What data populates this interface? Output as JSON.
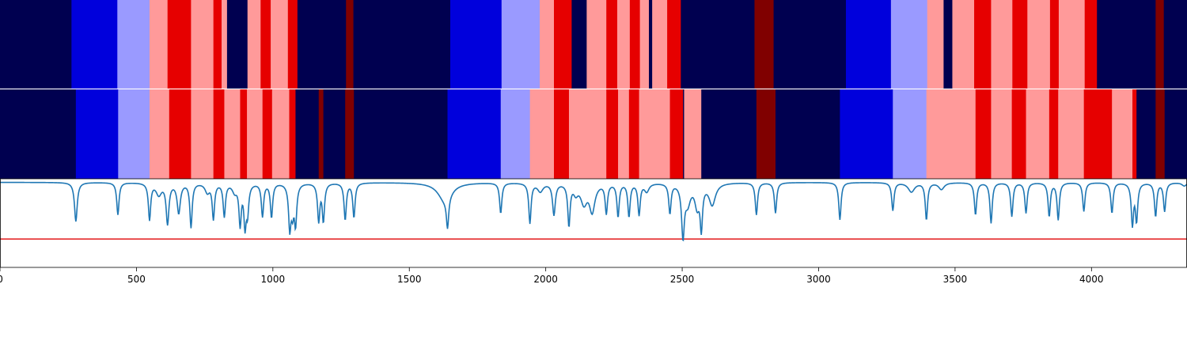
{
  "chart_data": [
    {
      "type": "heatmap",
      "panel": "top-strip",
      "x_range": [
        0,
        4350
      ],
      "segments": [
        {
          "start": 0,
          "end": 262,
          "class": "navy"
        },
        {
          "start": 262,
          "end": 430,
          "class": "blue"
        },
        {
          "start": 430,
          "end": 548,
          "class": "lightblue"
        },
        {
          "start": 548,
          "end": 614,
          "class": "pink"
        },
        {
          "start": 614,
          "end": 700,
          "class": "red"
        },
        {
          "start": 700,
          "end": 782,
          "class": "pink"
        },
        {
          "start": 782,
          "end": 812,
          "class": "red"
        },
        {
          "start": 812,
          "end": 832,
          "class": "pink"
        },
        {
          "start": 832,
          "end": 907,
          "class": "navy"
        },
        {
          "start": 907,
          "end": 955,
          "class": "pink"
        },
        {
          "start": 955,
          "end": 992,
          "class": "red"
        },
        {
          "start": 992,
          "end": 1055,
          "class": "pink"
        },
        {
          "start": 1055,
          "end": 1090,
          "class": "red"
        },
        {
          "start": 1090,
          "end": 1268,
          "class": "navy"
        },
        {
          "start": 1268,
          "end": 1295,
          "class": "darkred"
        },
        {
          "start": 1295,
          "end": 1650,
          "class": "navy"
        },
        {
          "start": 1650,
          "end": 1838,
          "class": "blue"
        },
        {
          "start": 1838,
          "end": 1978,
          "class": "lightblue"
        },
        {
          "start": 1978,
          "end": 2030,
          "class": "pink"
        },
        {
          "start": 2030,
          "end": 2095,
          "class": "red"
        },
        {
          "start": 2095,
          "end": 2150,
          "class": "navy"
        },
        {
          "start": 2150,
          "end": 2222,
          "class": "pink"
        },
        {
          "start": 2222,
          "end": 2262,
          "class": "red"
        },
        {
          "start": 2262,
          "end": 2308,
          "class": "pink"
        },
        {
          "start": 2308,
          "end": 2345,
          "class": "red"
        },
        {
          "start": 2345,
          "end": 2378,
          "class": "pink"
        },
        {
          "start": 2378,
          "end": 2390,
          "class": "navy"
        },
        {
          "start": 2390,
          "end": 2445,
          "class": "pink"
        },
        {
          "start": 2445,
          "end": 2495,
          "class": "red"
        },
        {
          "start": 2495,
          "end": 2765,
          "class": "navy"
        },
        {
          "start": 2765,
          "end": 2835,
          "class": "darkred"
        },
        {
          "start": 2835,
          "end": 3100,
          "class": "navy"
        },
        {
          "start": 3100,
          "end": 3265,
          "class": "blue"
        },
        {
          "start": 3265,
          "end": 3398,
          "class": "lightblue"
        },
        {
          "start": 3398,
          "end": 3458,
          "class": "pink"
        },
        {
          "start": 3458,
          "end": 3490,
          "class": "navy"
        },
        {
          "start": 3490,
          "end": 3570,
          "class": "pink"
        },
        {
          "start": 3570,
          "end": 3632,
          "class": "red"
        },
        {
          "start": 3632,
          "end": 3710,
          "class": "pink"
        },
        {
          "start": 3710,
          "end": 3765,
          "class": "red"
        },
        {
          "start": 3765,
          "end": 3848,
          "class": "pink"
        },
        {
          "start": 3848,
          "end": 3880,
          "class": "red"
        },
        {
          "start": 3880,
          "end": 3975,
          "class": "pink"
        },
        {
          "start": 3975,
          "end": 4020,
          "class": "red"
        },
        {
          "start": 4020,
          "end": 4235,
          "class": "navy"
        },
        {
          "start": 4235,
          "end": 4265,
          "class": "darkred"
        },
        {
          "start": 4265,
          "end": 4350,
          "class": "navy"
        }
      ]
    },
    {
      "type": "heatmap",
      "panel": "middle-strip",
      "x_range": [
        0,
        4350
      ],
      "segments": [
        {
          "start": 0,
          "end": 278,
          "class": "navy"
        },
        {
          "start": 278,
          "end": 433,
          "class": "blue"
        },
        {
          "start": 433,
          "end": 548,
          "class": "lightblue"
        },
        {
          "start": 548,
          "end": 620,
          "class": "pink"
        },
        {
          "start": 620,
          "end": 700,
          "class": "red"
        },
        {
          "start": 700,
          "end": 782,
          "class": "pink"
        },
        {
          "start": 782,
          "end": 822,
          "class": "red"
        },
        {
          "start": 822,
          "end": 880,
          "class": "pink"
        },
        {
          "start": 880,
          "end": 905,
          "class": "red"
        },
        {
          "start": 905,
          "end": 962,
          "class": "pink"
        },
        {
          "start": 962,
          "end": 997,
          "class": "red"
        },
        {
          "start": 997,
          "end": 1060,
          "class": "pink"
        },
        {
          "start": 1060,
          "end": 1083,
          "class": "red"
        },
        {
          "start": 1083,
          "end": 1168,
          "class": "navy"
        },
        {
          "start": 1168,
          "end": 1185,
          "class": "darkred"
        },
        {
          "start": 1185,
          "end": 1265,
          "class": "navy"
        },
        {
          "start": 1265,
          "end": 1297,
          "class": "darkred"
        },
        {
          "start": 1297,
          "end": 1640,
          "class": "navy"
        },
        {
          "start": 1640,
          "end": 1835,
          "class": "blue"
        },
        {
          "start": 1835,
          "end": 1942,
          "class": "lightblue"
        },
        {
          "start": 1942,
          "end": 2030,
          "class": "pink"
        },
        {
          "start": 2030,
          "end": 2085,
          "class": "red"
        },
        {
          "start": 2085,
          "end": 2222,
          "class": "pink"
        },
        {
          "start": 2222,
          "end": 2265,
          "class": "red"
        },
        {
          "start": 2265,
          "end": 2305,
          "class": "pink"
        },
        {
          "start": 2305,
          "end": 2342,
          "class": "red"
        },
        {
          "start": 2342,
          "end": 2455,
          "class": "pink"
        },
        {
          "start": 2455,
          "end": 2503,
          "class": "red"
        },
        {
          "start": 2503,
          "end": 2507,
          "class": "navy"
        },
        {
          "start": 2507,
          "end": 2570,
          "class": "pink"
        },
        {
          "start": 2570,
          "end": 2772,
          "class": "navy"
        },
        {
          "start": 2772,
          "end": 2842,
          "class": "darkred"
        },
        {
          "start": 2842,
          "end": 3078,
          "class": "navy"
        },
        {
          "start": 3078,
          "end": 3272,
          "class": "blue"
        },
        {
          "start": 3272,
          "end": 3395,
          "class": "lightblue"
        },
        {
          "start": 3395,
          "end": 3575,
          "class": "pink"
        },
        {
          "start": 3575,
          "end": 3632,
          "class": "red"
        },
        {
          "start": 3632,
          "end": 3708,
          "class": "pink"
        },
        {
          "start": 3708,
          "end": 3760,
          "class": "red"
        },
        {
          "start": 3760,
          "end": 3845,
          "class": "pink"
        },
        {
          "start": 3845,
          "end": 3878,
          "class": "red"
        },
        {
          "start": 3878,
          "end": 3972,
          "class": "pink"
        },
        {
          "start": 3972,
          "end": 4075,
          "class": "red"
        },
        {
          "start": 4075,
          "end": 4150,
          "class": "pink"
        },
        {
          "start": 4150,
          "end": 4165,
          "class": "red"
        },
        {
          "start": 4165,
          "end": 4235,
          "class": "navy"
        },
        {
          "start": 4235,
          "end": 4268,
          "class": "darkred"
        },
        {
          "start": 4268,
          "end": 4350,
          "class": "navy"
        }
      ]
    },
    {
      "type": "line",
      "panel": "bottom-line",
      "x_range": [
        0,
        4350
      ],
      "y_range": [
        0,
        1
      ],
      "xticks": [
        "0",
        "500",
        "1000",
        "1500",
        "2000",
        "2500",
        "3000",
        "3500",
        "4000"
      ],
      "xtick_values": [
        0,
        500,
        1000,
        1500,
        2000,
        2500,
        3000,
        3500,
        4000
      ],
      "threshold": 0.32,
      "series": [
        {
          "color": "#1f77b4",
          "baseline": 0.96,
          "dips": [
            [
              25,
              0.98,
              40
            ],
            [
              80,
              0.97,
              60
            ],
            [
              150,
              0.975,
              50
            ],
            [
              230,
              0.96,
              40
            ],
            [
              278,
              0.5,
              6
            ],
            [
              432,
              0.58,
              5
            ],
            [
              548,
              0.52,
              5
            ],
            [
              582,
              0.82,
              12
            ],
            [
              614,
              0.47,
              6
            ],
            [
              655,
              0.6,
              7
            ],
            [
              700,
              0.43,
              5
            ],
            [
              760,
              0.85,
              10
            ],
            [
              782,
              0.53,
              5
            ],
            [
              822,
              0.56,
              5
            ],
            [
              860,
              0.86,
              10
            ],
            [
              880,
              0.45,
              5
            ],
            [
              898,
              0.42,
              5
            ],
            [
              907,
              0.6,
              5
            ],
            [
              962,
              0.56,
              5
            ],
            [
              995,
              0.55,
              5
            ],
            [
              1062,
              0.4,
              5
            ],
            [
              1072,
              0.6,
              6
            ],
            [
              1083,
              0.46,
              5
            ],
            [
              1168,
              0.5,
              5
            ],
            [
              1185,
              0.5,
              5
            ],
            [
              1265,
              0.52,
              5
            ],
            [
              1297,
              0.55,
              5
            ],
            [
              1630,
              0.75,
              30
            ],
            [
              1640,
              0.52,
              5
            ],
            [
              1835,
              0.6,
              5
            ],
            [
              1942,
              0.48,
              5
            ],
            [
              1980,
              0.86,
              12
            ],
            [
              2030,
              0.58,
              6
            ],
            [
              2085,
              0.45,
              5
            ],
            [
              2110,
              0.85,
              10
            ],
            [
              2140,
              0.72,
              14
            ],
            [
              2170,
              0.62,
              12
            ],
            [
              2222,
              0.6,
              5
            ],
            [
              2265,
              0.56,
              5
            ],
            [
              2305,
              0.56,
              5
            ],
            [
              2342,
              0.58,
              5
            ],
            [
              2370,
              0.86,
              10
            ],
            [
              2455,
              0.6,
              5
            ],
            [
              2503,
              0.3,
              6
            ],
            [
              2520,
              0.72,
              12
            ],
            [
              2555,
              0.68,
              10
            ],
            [
              2570,
              0.4,
              5
            ],
            [
              2610,
              0.7,
              14
            ],
            [
              2772,
              0.58,
              5
            ],
            [
              2842,
              0.6,
              5
            ],
            [
              3078,
              0.52,
              5
            ],
            [
              3272,
              0.63,
              5
            ],
            [
              3340,
              0.85,
              14
            ],
            [
              3395,
              0.52,
              5
            ],
            [
              3450,
              0.88,
              12
            ],
            [
              3575,
              0.58,
              5
            ],
            [
              3632,
              0.48,
              5
            ],
            [
              3708,
              0.56,
              5
            ],
            [
              3760,
              0.6,
              5
            ],
            [
              3845,
              0.56,
              5
            ],
            [
              3878,
              0.52,
              5
            ],
            [
              3972,
              0.62,
              5
            ],
            [
              4075,
              0.6,
              5
            ],
            [
              4150,
              0.45,
              5
            ],
            [
              4165,
              0.5,
              5
            ],
            [
              4235,
              0.56,
              5
            ],
            [
              4268,
              0.62,
              5
            ],
            [
              4340,
              0.92,
              10
            ]
          ]
        }
      ],
      "threshold_color": "#e31a1c"
    }
  ],
  "colors": {
    "navy": "#000050",
    "blue": "#0000dc",
    "lightblue": "#9a9aff",
    "pink": "#ff9a9a",
    "red": "#e60000",
    "darkred": "#800000",
    "line": "#1f77b4",
    "threshold": "#e31a1c"
  }
}
